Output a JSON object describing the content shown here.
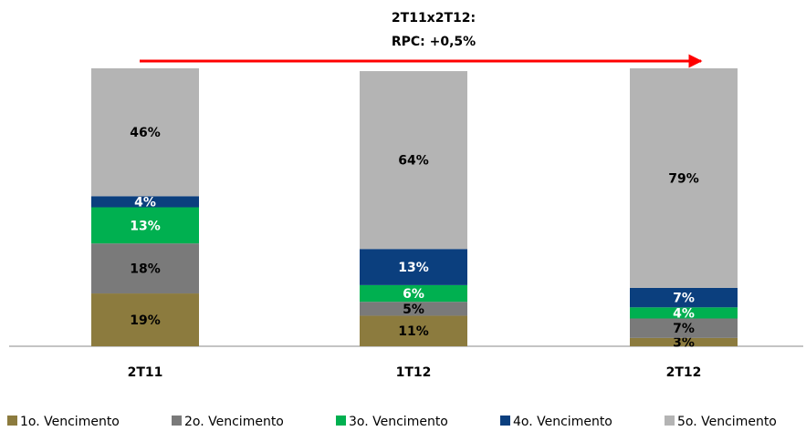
{
  "chart_data": {
    "type": "stacked_bar",
    "annotation": [
      "2T11x2T12:",
      "RPC: +0,5%"
    ],
    "categories": [
      "2T11",
      "1T12",
      "2T12"
    ],
    "ylim": [
      0,
      100
    ],
    "legend": "bottom",
    "series": [
      {
        "name": "1o. Vencimento",
        "color": "#8c7b3e",
        "label_color": "#000000",
        "values": [
          19,
          11,
          3
        ],
        "value_labels": [
          "19%",
          "11%",
          "3%"
        ]
      },
      {
        "name": "2o. Vencimento",
        "color": "#7a7a7a",
        "label_color": "#000000",
        "values": [
          18,
          5,
          7
        ],
        "value_labels": [
          "18%",
          "5%",
          "7%"
        ]
      },
      {
        "name": "3o. Vencimento",
        "color": "#00b050",
        "label_color": "#ffffff",
        "values": [
          13,
          6,
          4
        ],
        "value_labels": [
          "13%",
          "6%",
          "4%"
        ]
      },
      {
        "name": "4o. Vencimento",
        "color": "#0b3f7e",
        "label_color": "#ffffff",
        "values": [
          4,
          13,
          7
        ],
        "value_labels": [
          "4%",
          "13%",
          "7%"
        ]
      },
      {
        "name": "5o. Vencimento",
        "color": "#b4b4b4",
        "label_color": "#000000",
        "values": [
          46,
          64,
          79
        ],
        "value_labels": [
          "46%",
          "64%",
          "79%"
        ]
      }
    ]
  }
}
